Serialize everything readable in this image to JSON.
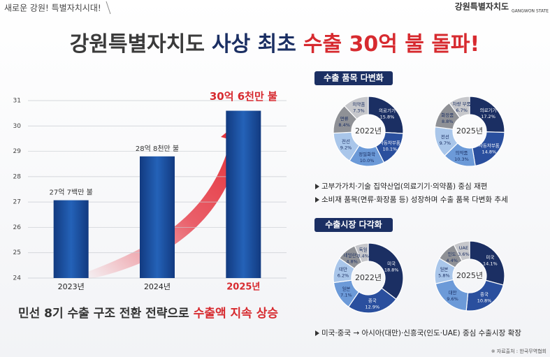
{
  "header": {
    "tag": "새로운 강원! 특별자치시대!",
    "logo": "강원특별자치도",
    "logo_sub": "GANGWON STATE"
  },
  "title": {
    "part1": "강원특별자치도",
    "part2": "사상 최초",
    "part3": "수출 30억 불 돌파!"
  },
  "chart_data": [
    {
      "type": "bar",
      "categories": [
        "2023년",
        "2024년",
        "2025년"
      ],
      "values": [
        27.07,
        28.8,
        30.6
      ],
      "value_labels": [
        "27억 7백만 불",
        "28억 8천만 불",
        "30억 6천만 불"
      ],
      "color": "#1d4f9c",
      "ylim": [
        24,
        31
      ],
      "yticks": [
        24,
        25,
        26,
        27,
        28,
        29,
        30,
        31
      ],
      "grid": true
    },
    {
      "type": "pie",
      "title": "2022년",
      "categories": [
        "의료기기",
        "자동차부품",
        "정밀화학",
        "전선",
        "면류",
        "의약품"
      ],
      "values": [
        15.8,
        10.1,
        10.0,
        9.2,
        8.4,
        7.3
      ],
      "value_labels": [
        "15.8%",
        "10.1%",
        "10.0%",
        "9.2%",
        "8.4%",
        "7.3%"
      ],
      "colors": [
        "#1b2f63",
        "#2a4f9e",
        "#6c9ad8",
        "#a9c6ea",
        "#8f9196",
        "#c6c7cb"
      ]
    },
    {
      "type": "pie",
      "title": "2025년",
      "categories": [
        "의료기기",
        "자동차부품",
        "의약품",
        "전선",
        "화장품",
        "차량 부품"
      ],
      "values": [
        17.2,
        14.8,
        10.3,
        9.7,
        8.8,
        6.7
      ],
      "value_labels": [
        "17.2%",
        "14.8%",
        "10.3%",
        "9.7%",
        "8.8%",
        "6.7%"
      ],
      "colors": [
        "#1b2f63",
        "#2a4f9e",
        "#6c9ad8",
        "#a9c6ea",
        "#8f9196",
        "#c6c7cb"
      ]
    },
    {
      "type": "pie",
      "title": "2022년",
      "categories": [
        "미국",
        "중국",
        "일본",
        "대만",
        "네덜란드",
        "독일"
      ],
      "values": [
        18.8,
        12.9,
        7.1,
        6.2,
        4.8,
        3.4
      ],
      "value_labels": [
        "18.8%",
        "12.9%",
        "7.1%",
        "6.2%",
        "4.8%",
        "3.4%"
      ],
      "colors": [
        "#1b2f63",
        "#2a4f9e",
        "#6c9ad8",
        "#a9c6ea",
        "#8f9196",
        "#c6c7cb"
      ]
    },
    {
      "type": "pie",
      "title": "2025년",
      "categories": [
        "미국",
        "중국",
        "대만",
        "일본",
        "인도",
        "UAE"
      ],
      "values": [
        14.1,
        10.8,
        9.6,
        5.8,
        4.4,
        3.6
      ],
      "value_labels": [
        "14.1%",
        "10.8%",
        "9.6%",
        "5.8%",
        "4.4%",
        "3.6%"
      ],
      "colors": [
        "#1b2f63",
        "#2a4f9e",
        "#6c9ad8",
        "#a9c6ea",
        "#8f9196",
        "#c6c7cb"
      ]
    }
  ],
  "sections": [
    {
      "heading": "수출 품목 다변화",
      "bullets": [
        "고부가가치·기술 집약산업(의료기기·의약품) 중심 재편",
        "소비재 품목(면류·화장품 등) 성장하며 수출 품목 다변화 추세"
      ]
    },
    {
      "heading": "수출시장 다각화",
      "bullets": [
        "미국·중국 → 아시아(대만)·신흥국(인도·UAE) 중심 수출시장 확장"
      ]
    }
  ],
  "subtitle": {
    "part1": "민선 8기 수출 구조 전환 전략으로",
    "part2": "수출액 지속 상승"
  },
  "source": "※ 자료출처 : 한국무역협회"
}
